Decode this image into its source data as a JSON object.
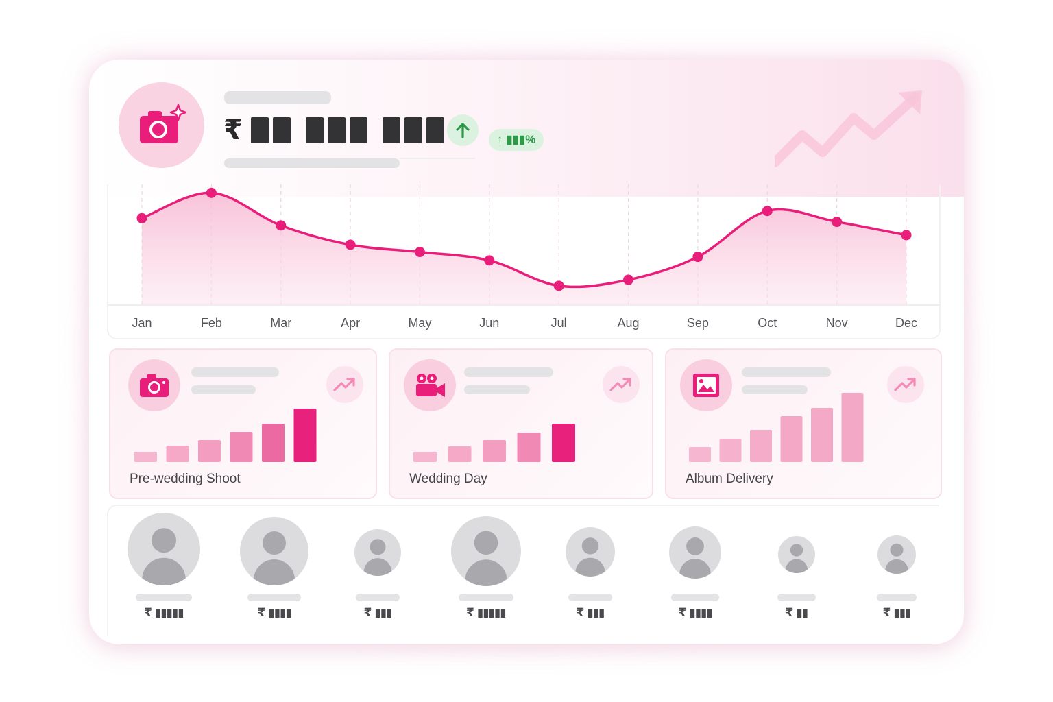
{
  "header": {
    "currency_symbol": "₹",
    "growth_badge": "↑ ▮▮▮%"
  },
  "colors": {
    "accent": "#e91e7a",
    "accent_soft": "#f9cfe0",
    "positive": "#2e9a48",
    "placeholder": "#e3e3e6"
  },
  "icons": {
    "hero": "camera-sparkle-icon",
    "growth": "arrow-up-icon",
    "decor": "trend-up-arrow-icon"
  },
  "chart_data": {
    "type": "line",
    "categories": [
      "Jan",
      "Feb",
      "Mar",
      "Apr",
      "May",
      "Jun",
      "Jul",
      "Aug",
      "Sep",
      "Oct",
      "Nov",
      "Dec"
    ],
    "values": [
      72,
      93,
      66,
      50,
      44,
      37,
      16,
      21,
      40,
      78,
      69,
      58
    ],
    "ylim": [
      0,
      100
    ],
    "area_fill": true,
    "grid": "vertical-dashed"
  },
  "services": [
    {
      "label": "Pre-wedding Shoot",
      "icon": "camera-icon",
      "trend_icon": "trend-up-icon",
      "bars": [
        15,
        24,
        32,
        44,
        56,
        78
      ]
    },
    {
      "label": "Wedding Day",
      "icon": "video-camera-icon",
      "trend_icon": "trend-up-icon",
      "bars": [
        15,
        23,
        32,
        43,
        56
      ]
    },
    {
      "label": "Album Delivery",
      "icon": "image-icon",
      "trend_icon": "trend-up-icon",
      "bars": [
        22,
        34,
        47,
        67,
        79,
        101
      ]
    }
  ],
  "people": [
    {
      "currency": "₹",
      "amount_masked": "▮▮▮▮▮"
    },
    {
      "currency": "₹",
      "amount_masked": "▮▮▮▮"
    },
    {
      "currency": "₹",
      "amount_masked": "▮▮▮"
    },
    {
      "currency": "₹",
      "amount_masked": "▮▮▮▮▮"
    },
    {
      "currency": "₹",
      "amount_masked": "▮▮▮"
    },
    {
      "currency": "₹",
      "amount_masked": "▮▮▮▮"
    },
    {
      "currency": "₹",
      "amount_masked": "▮▮"
    },
    {
      "currency": "₹",
      "amount_masked": "▮▮▮"
    }
  ]
}
